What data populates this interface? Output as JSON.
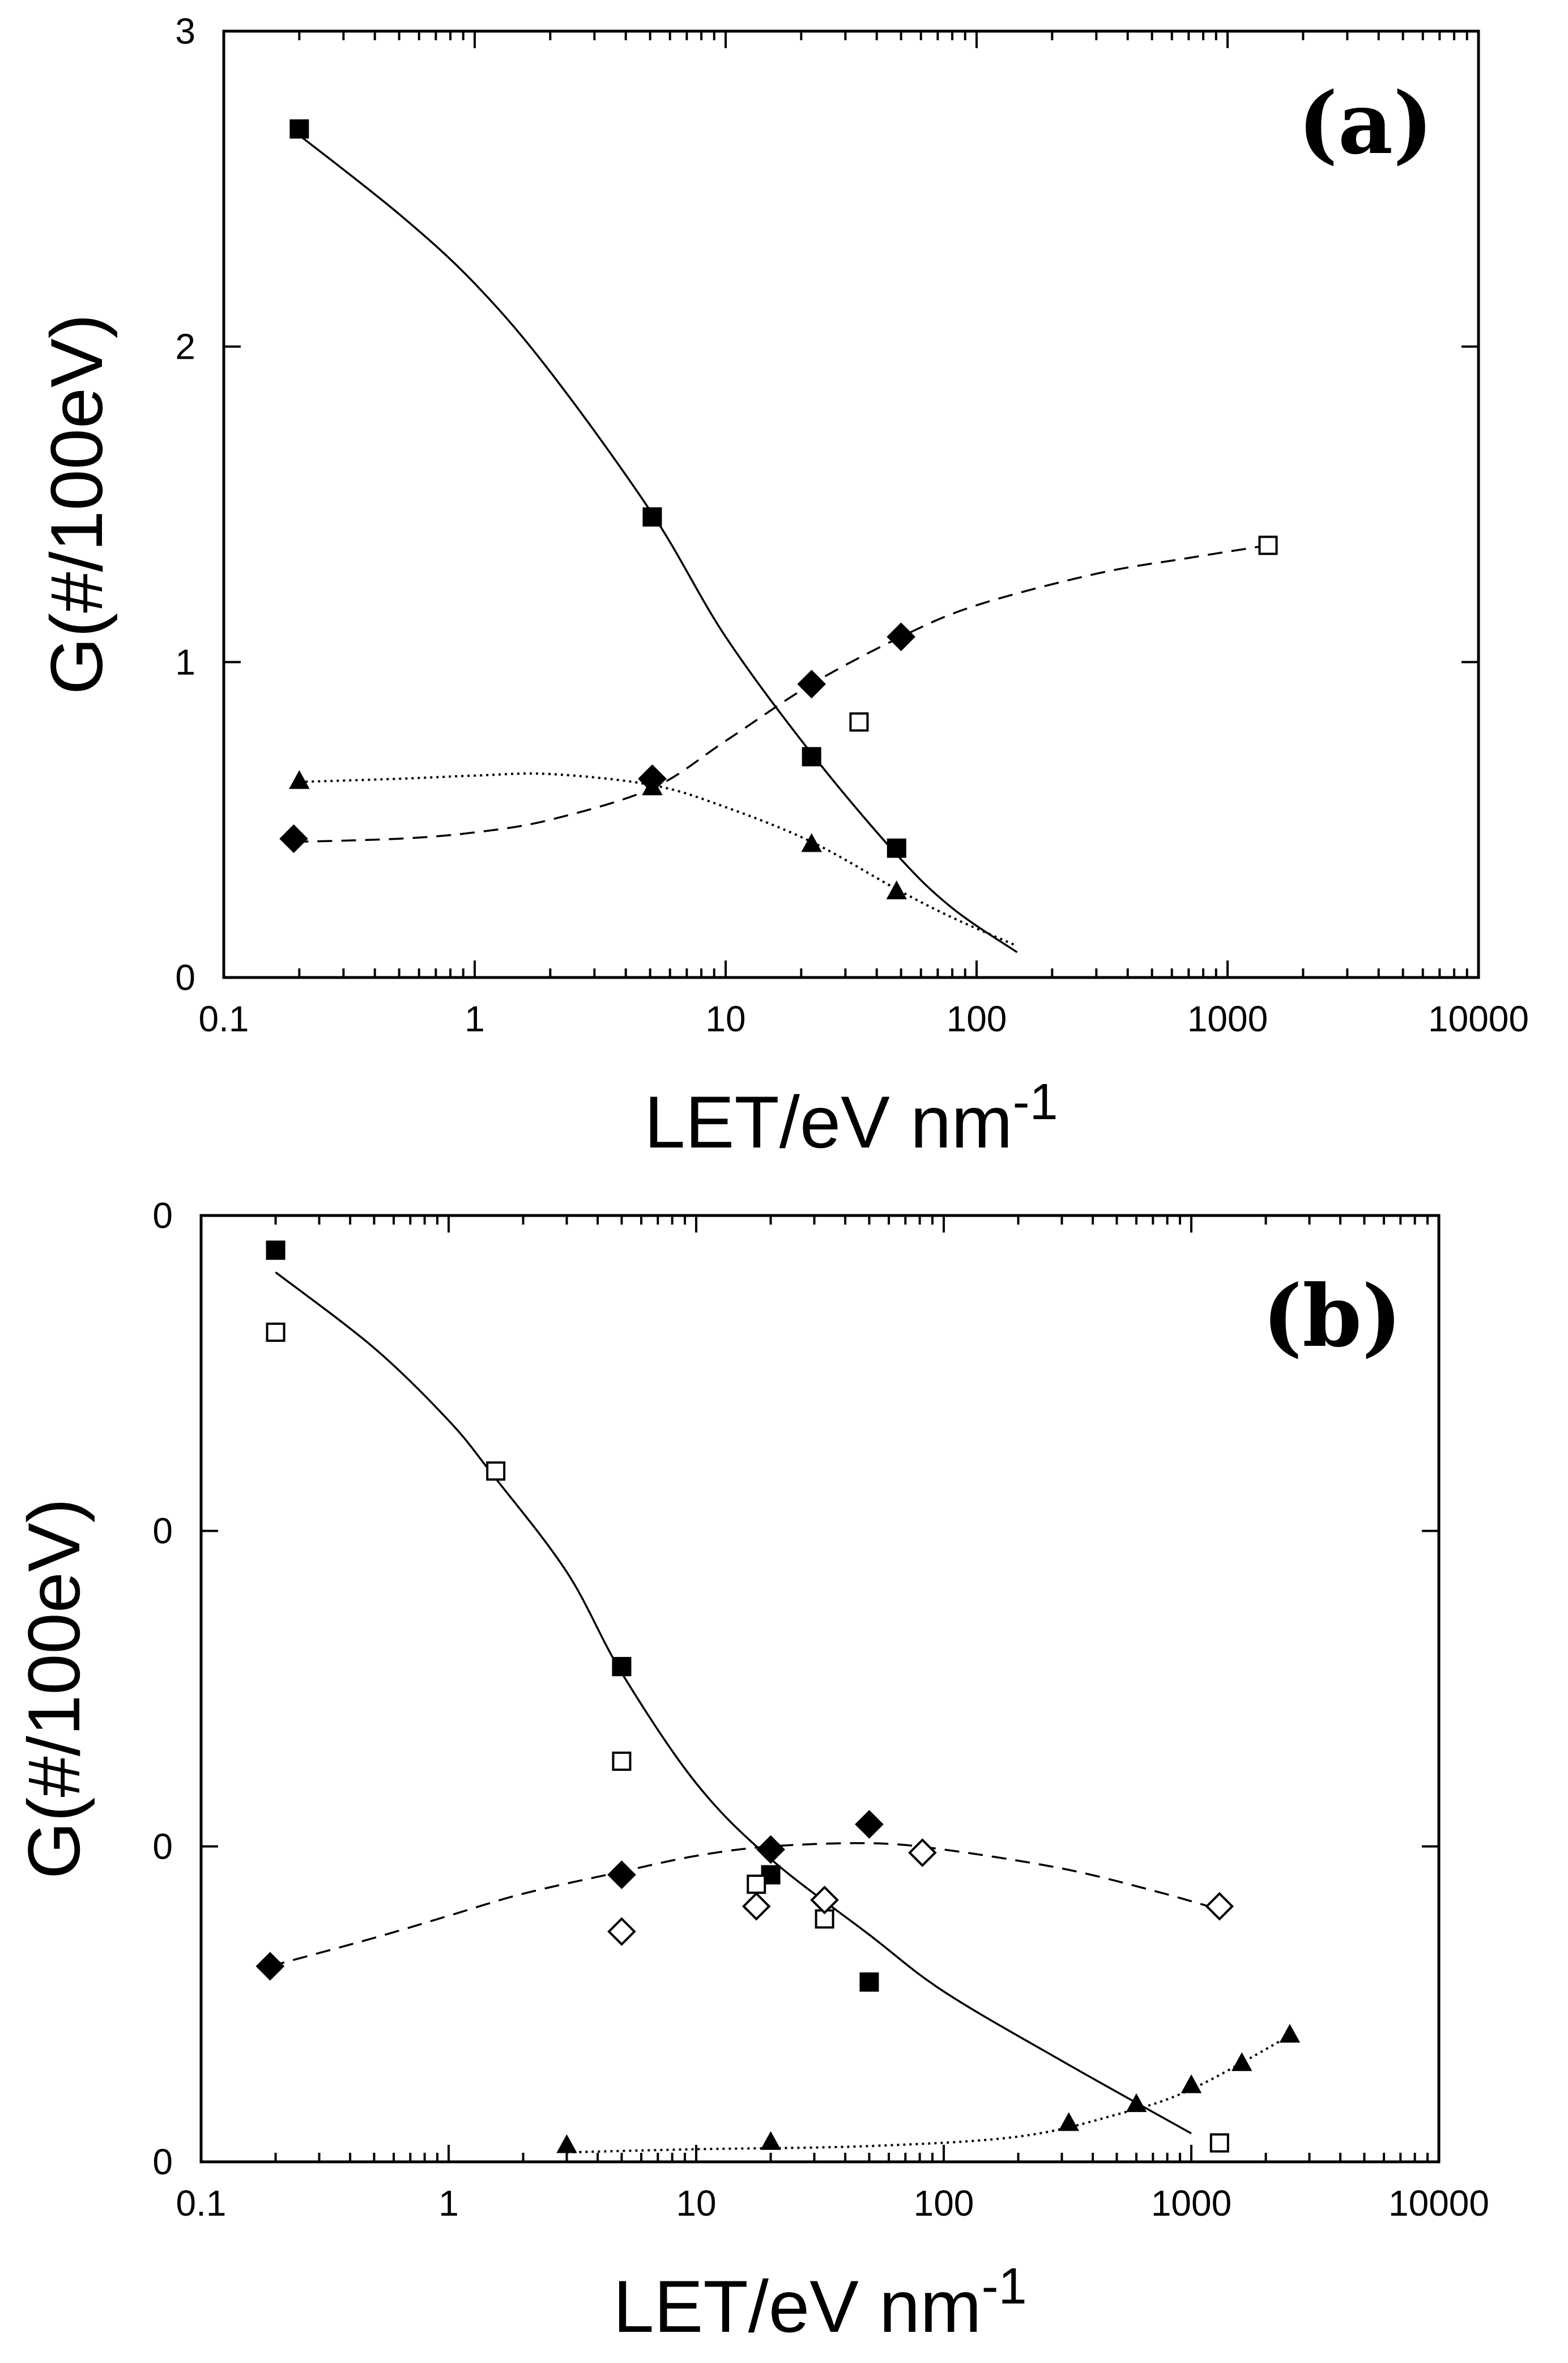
{
  "chart_data": [
    {
      "type": "scatter",
      "panel_label": "(a)",
      "xlabel": "LET/eV nm",
      "xlabel_superscript": "-1",
      "ylabel": "G(#/100eV)",
      "xscale": "log",
      "xlim": [
        0.1,
        10000
      ],
      "ylim": [
        0,
        3
      ],
      "x_tick_labels": [
        "0.1",
        "1",
        "10",
        "100",
        "1000",
        "10000"
      ],
      "y_tick_labels": [
        "0",
        "1",
        "2",
        "3"
      ],
      "grid": false,
      "legend": "none",
      "series": [
        {
          "marker": "filled-square",
          "points": [
            [
              0.2,
              2.69
            ],
            [
              5.1,
              1.46
            ],
            [
              22,
              0.7
            ],
            [
              48,
              0.41
            ]
          ],
          "fit": {
            "style": "solid",
            "points": [
              [
                0.2,
                2.67
              ],
              [
                0.5,
                2.42
              ],
              [
                1,
                2.2
              ],
              [
                2,
                1.92
              ],
              [
                5.1,
                1.47
              ],
              [
                10,
                1.08
              ],
              [
                22,
                0.71
              ],
              [
                48,
                0.39
              ],
              [
                80,
                0.22
              ],
              [
                145,
                0.08
              ]
            ]
          }
        },
        {
          "marker": "filled-diamond",
          "points": [
            [
              0.19,
              0.44
            ],
            [
              5.1,
              0.63
            ],
            [
              22,
              0.93
            ],
            [
              50,
              1.08
            ]
          ],
          "fit": {
            "style": "dashed",
            "points": [
              [
                0.19,
                0.43
              ],
              [
                0.5,
                0.44
              ],
              [
                1,
                0.46
              ],
              [
                2,
                0.5
              ],
              [
                5.1,
                0.6
              ],
              [
                10,
                0.75
              ],
              [
                22,
                0.93
              ],
              [
                50,
                1.08
              ],
              [
                100,
                1.18
              ],
              [
                300,
                1.28
              ],
              [
                700,
                1.33
              ],
              [
                1450,
                1.37
              ]
            ]
          }
        },
        {
          "marker": "filled-triangle",
          "points": [
            [
              0.2,
              0.62
            ],
            [
              5.1,
              0.6
            ],
            [
              22,
              0.42
            ],
            [
              48,
              0.27
            ]
          ],
          "fit": {
            "style": "dotted",
            "points": [
              [
                0.2,
                0.62
              ],
              [
                0.5,
                0.63
              ],
              [
                1,
                0.64
              ],
              [
                2,
                0.645
              ],
              [
                5.1,
                0.61
              ],
              [
                10,
                0.54
              ],
              [
                22,
                0.43
              ],
              [
                48,
                0.28
              ],
              [
                80,
                0.19
              ],
              [
                145,
                0.1
              ]
            ]
          }
        },
        {
          "marker": "open-square",
          "points": [
            [
              34,
              0.81
            ],
            [
              1450,
              1.37
            ]
          ]
        }
      ]
    },
    {
      "type": "scatter",
      "panel_label": "(b)",
      "xlabel": "LET/eV nm",
      "xlabel_superscript": "-1",
      "ylabel": "G(#/100eV)",
      "xscale": "log",
      "xlim": [
        0.1,
        10000
      ],
      "ylim": [
        0,
        3
      ],
      "x_tick_labels": [
        "0.1",
        "1",
        "10",
        "100",
        "1000",
        "10000"
      ],
      "y_tick_labels": [
        "0",
        "0",
        "0",
        "0"
      ],
      "grid": false,
      "legend": "none",
      "series": [
        {
          "marker": "filled-square",
          "points": [
            [
              0.2,
              2.89
            ],
            [
              5,
              1.57
            ],
            [
              20,
              0.91
            ],
            [
              50,
              0.57
            ]
          ],
          "fit": {
            "style": "solid",
            "points": [
              [
                0.2,
                2.82
              ],
              [
                0.5,
                2.58
              ],
              [
                1,
                2.35
              ],
              [
                1.5,
                2.18
              ],
              [
                3,
                1.87
              ],
              [
                5,
                1.55
              ],
              [
                10,
                1.2
              ],
              [
                20,
                0.96
              ],
              [
                50,
                0.72
              ],
              [
                100,
                0.54
              ],
              [
                300,
                0.32
              ],
              [
                1000,
                0.09
              ]
            ]
          }
        },
        {
          "marker": "open-square",
          "points": [
            [
              0.2,
              2.63
            ],
            [
              1.55,
              2.19
            ],
            [
              5,
              1.27
            ],
            [
              17.5,
              0.88
            ],
            [
              33,
              0.77
            ],
            [
              1300,
              0.06
            ]
          ]
        },
        {
          "marker": "filled-diamond",
          "points": [
            [
              0.19,
              0.62
            ],
            [
              5,
              0.91
            ],
            [
              20,
              0.99
            ],
            [
              50,
              1.07
            ]
          ],
          "fit": {
            "style": "dashed",
            "points": [
              [
                0.19,
                0.62
              ],
              [
                0.5,
                0.71
              ],
              [
                1,
                0.78
              ],
              [
                2,
                0.85
              ],
              [
                5,
                0.92
              ],
              [
                10,
                0.97
              ],
              [
                20,
                1.0
              ],
              [
                50,
                1.01
              ],
              [
                100,
                0.99
              ],
              [
                300,
                0.93
              ],
              [
                700,
                0.86
              ],
              [
                1300,
                0.8
              ]
            ]
          }
        },
        {
          "marker": "open-diamond",
          "points": [
            [
              5,
              0.73
            ],
            [
              17.5,
              0.81
            ],
            [
              33,
              0.83
            ],
            [
              82,
              0.98
            ],
            [
              1300,
              0.81
            ]
          ]
        },
        {
          "marker": "filled-triangle",
          "points": [
            [
              3,
              0.05
            ],
            [
              20,
              0.06
            ],
            [
              320,
              0.12
            ],
            [
              600,
              0.18
            ],
            [
              1000,
              0.24
            ],
            [
              1600,
              0.31
            ],
            [
              2500,
              0.4
            ]
          ],
          "fit": {
            "style": "dotted",
            "points": [
              [
                3,
                0.03
              ],
              [
                10,
                0.04
              ],
              [
                50,
                0.05
              ],
              [
                200,
                0.08
              ],
              [
                500,
                0.15
              ],
              [
                1000,
                0.23
              ],
              [
                2500,
                0.4
              ]
            ]
          }
        }
      ]
    }
  ]
}
